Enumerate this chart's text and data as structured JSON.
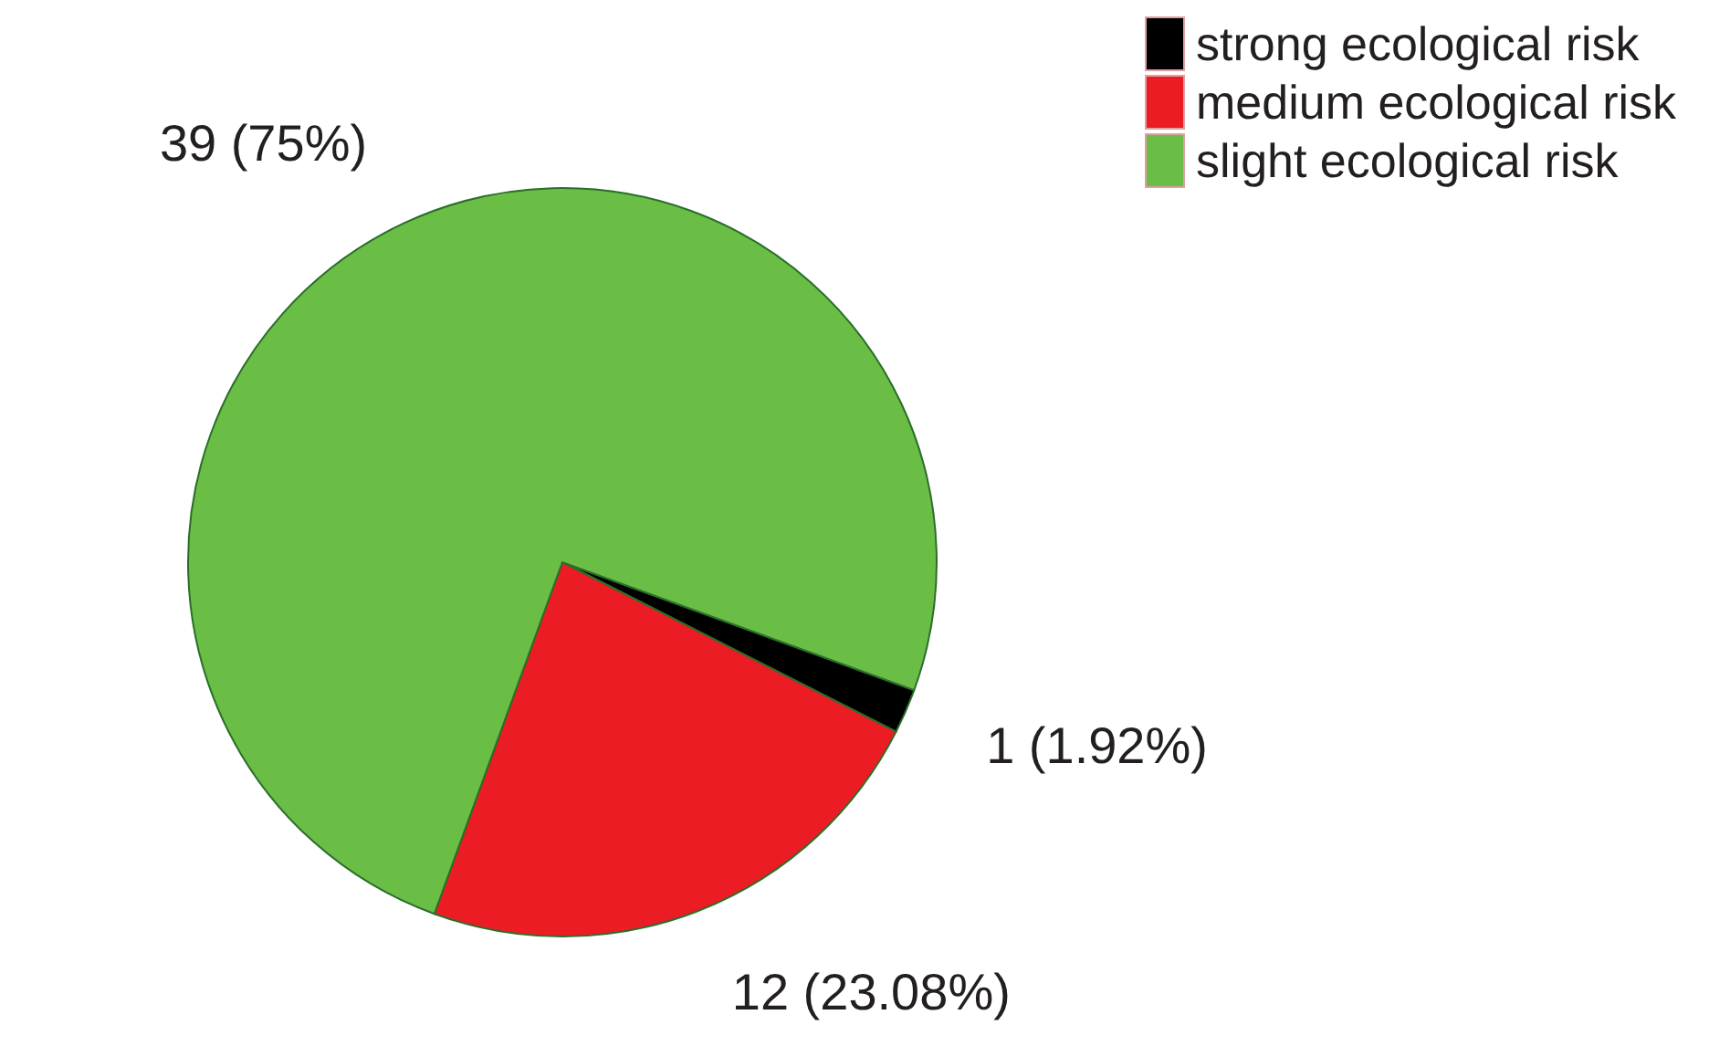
{
  "chart_data": {
    "type": "pie",
    "categories": [
      "strong ecological risk",
      "medium ecological risk",
      "slight ecological risk"
    ],
    "values": [
      1,
      12,
      39
    ],
    "colors": [
      "#000000",
      "#ec1c24",
      "#6abd45"
    ],
    "value_labels": [
      "1 (1.92%)",
      "12 (23.08%)",
      "39 (75%)"
    ],
    "legend": "top right"
  }
}
